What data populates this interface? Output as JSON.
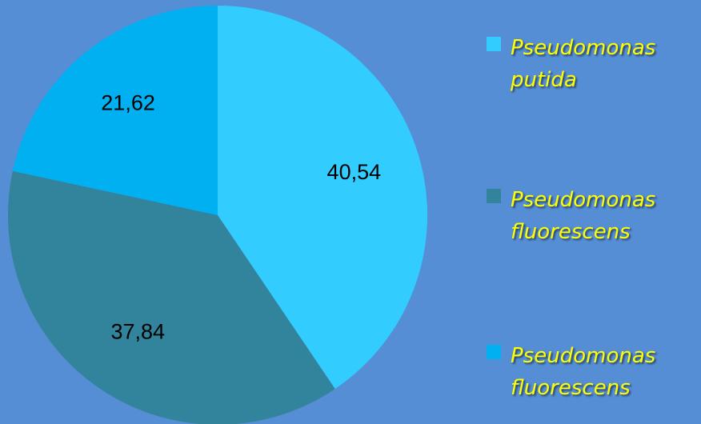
{
  "chart_data": {
    "type": "pie",
    "title": "",
    "slices": [
      {
        "label": "Pseudomonas putida",
        "line1": "Pseudomonas",
        "line2": "putida",
        "value": 40.54,
        "display": "40,54",
        "color": "#33ccff"
      },
      {
        "label": "Pseudomonas fluorescens",
        "line1": "Pseudomonas",
        "line2": "fluorescens",
        "value": 37.84,
        "display": "37,84",
        "color": "#31849b"
      },
      {
        "label": "Pseudomonas fluorescens",
        "line1": "Pseudomonas",
        "line2": "fluorescens",
        "value": 21.62,
        "display": "21,62",
        "color": "#00b0f0"
      }
    ],
    "start_angle": "12 o'clock",
    "direction": "clockwise",
    "legend_position": "right"
  },
  "colors": {
    "background": "#558ed5",
    "legend_text": "#ffff00",
    "label_text": "#000000"
  }
}
